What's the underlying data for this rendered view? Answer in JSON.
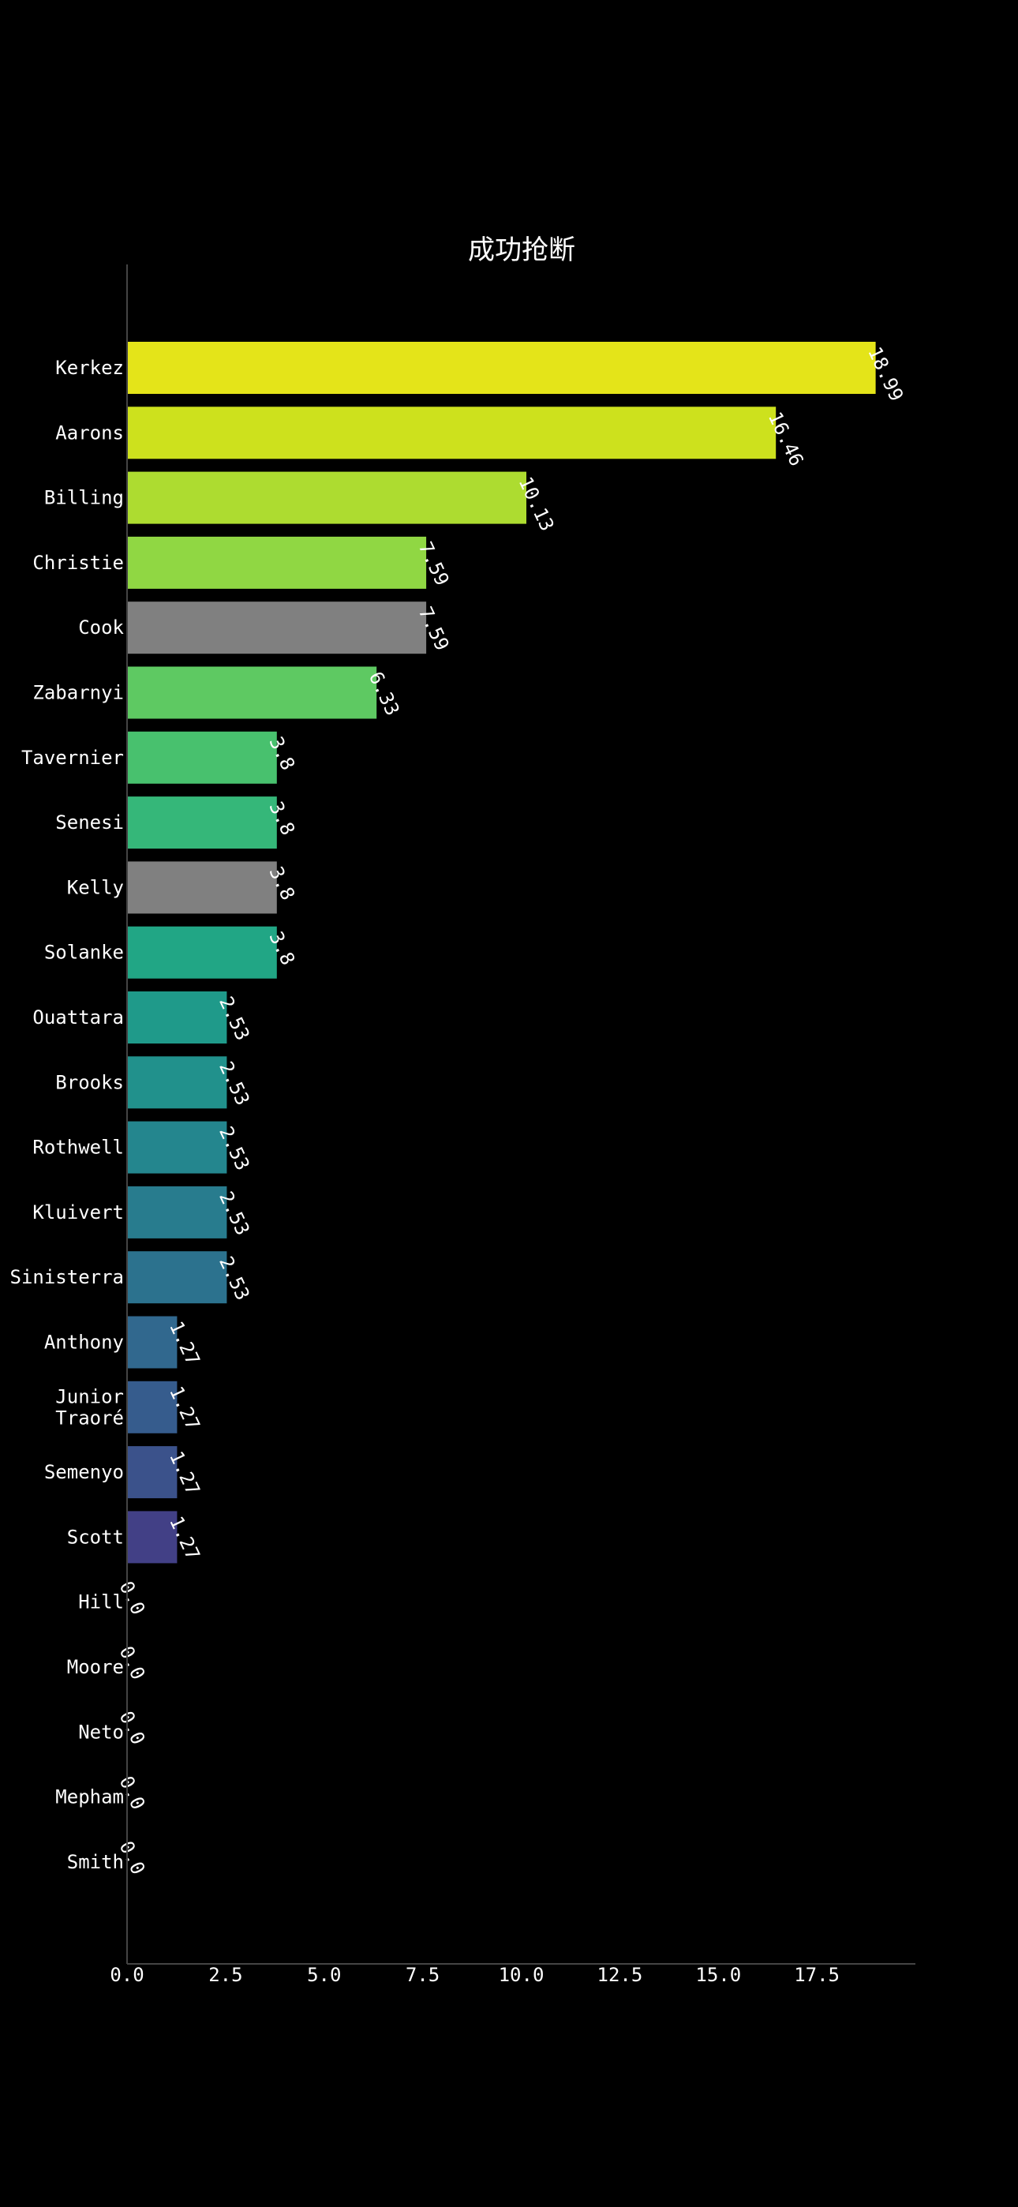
{
  "chart_data": {
    "type": "bar",
    "orientation": "horizontal",
    "title": "成功抢断",
    "xlabel": "",
    "ylabel": "",
    "xlim": [
      0,
      20
    ],
    "xticks": [
      "0.0",
      "2.5",
      "5.0",
      "7.5",
      "10.0",
      "12.5",
      "15.0",
      "17.5"
    ],
    "grid": false,
    "background": "#000000",
    "categories": [
      [
        "Kerkez"
      ],
      [
        "Aarons"
      ],
      [
        "Billing"
      ],
      [
        "Christie"
      ],
      [
        "Cook"
      ],
      [
        "Zabarnyi"
      ],
      [
        "Tavernier"
      ],
      [
        "Senesi"
      ],
      [
        "Kelly"
      ],
      [
        "Solanke"
      ],
      [
        "Ouattara"
      ],
      [
        "Brooks"
      ],
      [
        "Rothwell"
      ],
      [
        "Kluivert"
      ],
      [
        "Sinisterra"
      ],
      [
        "Anthony"
      ],
      [
        "Junior",
        "Traoré"
      ],
      [
        "Semenyo"
      ],
      [
        "Scott"
      ],
      [
        "Hill"
      ],
      [
        "Moore"
      ],
      [
        "Neto"
      ],
      [
        "Mepham"
      ],
      [
        "Smith"
      ]
    ],
    "values": [
      18.99,
      16.46,
      10.13,
      7.59,
      7.59,
      6.33,
      3.8,
      3.8,
      3.8,
      3.8,
      2.53,
      2.53,
      2.53,
      2.53,
      2.53,
      1.27,
      1.27,
      1.27,
      1.27,
      0.0,
      0.0,
      0.0,
      0.0,
      0.0
    ],
    "value_labels": [
      "18.99",
      "16.46",
      "10.13",
      "7.59",
      "7.59",
      "6.33",
      "3.8",
      "3.8",
      "3.8",
      "3.8",
      "2.53",
      "2.53",
      "2.53",
      "2.53",
      "2.53",
      "1.27",
      "1.27",
      "1.27",
      "1.27",
      "0.0",
      "0.0",
      "0.0",
      "0.0",
      "0.0"
    ],
    "colors": [
      "#e4e419",
      "#cde11d",
      "#addc30",
      "#90d743",
      "#808080",
      "#5ec962",
      "#48c16e",
      "#35b779",
      "#808080",
      "#21a685",
      "#1f9a8a",
      "#21918c",
      "#24868e",
      "#287c8e",
      "#2c728e",
      "#31688e",
      "#365c8d",
      "#3b528b",
      "#424086",
      "#472d7b",
      "#48186a",
      "#450457",
      "#440154",
      "#440154"
    ]
  }
}
